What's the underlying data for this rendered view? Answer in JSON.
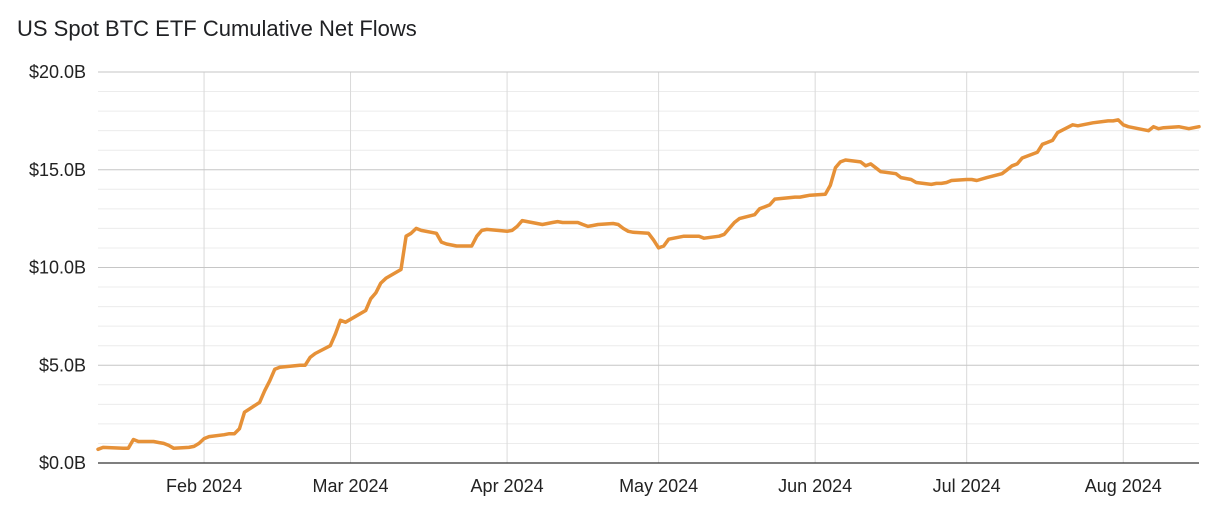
{
  "chart_data": {
    "type": "line",
    "title": "US Spot BTC ETF Cumulative Net Flows",
    "xlabel": "",
    "ylabel": "",
    "x_ticks": [
      "Feb 2024",
      "Mar 2024",
      "Apr 2024",
      "May 2024",
      "Jun 2024",
      "Jul 2024",
      "Aug 2024"
    ],
    "y_ticks": [
      "$0.0B",
      "$5.0B",
      "$10.0B",
      "$15.0B",
      "$20.0B"
    ],
    "ylim": [
      0,
      20
    ],
    "xlim": [
      "2024-01-11",
      "2024-08-16"
    ],
    "grid": true,
    "legend": "none",
    "series": [
      {
        "color": "#E69138",
        "unit": "$B",
        "points": [
          [
            "2024-01-11",
            0.7
          ],
          [
            "2024-01-12",
            0.8
          ],
          [
            "2024-01-16",
            0.75
          ],
          [
            "2024-01-17",
            0.75
          ],
          [
            "2024-01-18",
            1.2
          ],
          [
            "2024-01-19",
            1.1
          ],
          [
            "2024-01-22",
            1.1
          ],
          [
            "2024-01-23",
            1.05
          ],
          [
            "2024-01-24",
            1.0
          ],
          [
            "2024-01-25",
            0.9
          ],
          [
            "2024-01-26",
            0.75
          ],
          [
            "2024-01-29",
            0.8
          ],
          [
            "2024-01-30",
            0.85
          ],
          [
            "2024-01-31",
            1.0
          ],
          [
            "2024-02-01",
            1.25
          ],
          [
            "2024-02-02",
            1.35
          ],
          [
            "2024-02-05",
            1.45
          ],
          [
            "2024-02-06",
            1.5
          ],
          [
            "2024-02-07",
            1.5
          ],
          [
            "2024-02-08",
            1.75
          ],
          [
            "2024-02-09",
            2.6
          ],
          [
            "2024-02-12",
            3.1
          ],
          [
            "2024-02-13",
            3.7
          ],
          [
            "2024-02-14",
            4.2
          ],
          [
            "2024-02-15",
            4.8
          ],
          [
            "2024-02-16",
            4.9
          ],
          [
            "2024-02-20",
            5.0
          ],
          [
            "2024-02-21",
            5.0
          ],
          [
            "2024-02-22",
            5.4
          ],
          [
            "2024-02-23",
            5.6
          ],
          [
            "2024-02-26",
            6.0
          ],
          [
            "2024-02-27",
            6.6
          ],
          [
            "2024-02-28",
            7.3
          ],
          [
            "2024-02-29",
            7.2
          ],
          [
            "2024-03-01",
            7.35
          ],
          [
            "2024-03-04",
            7.8
          ],
          [
            "2024-03-05",
            8.4
          ],
          [
            "2024-03-06",
            8.7
          ],
          [
            "2024-03-07",
            9.2
          ],
          [
            "2024-03-08",
            9.45
          ],
          [
            "2024-03-11",
            9.9
          ],
          [
            "2024-03-12",
            11.6
          ],
          [
            "2024-03-13",
            11.75
          ],
          [
            "2024-03-14",
            12.0
          ],
          [
            "2024-03-15",
            11.9
          ],
          [
            "2024-03-18",
            11.75
          ],
          [
            "2024-03-19",
            11.3
          ],
          [
            "2024-03-20",
            11.2
          ],
          [
            "2024-03-21",
            11.15
          ],
          [
            "2024-03-22",
            11.1
          ],
          [
            "2024-03-25",
            11.1
          ],
          [
            "2024-03-26",
            11.6
          ],
          [
            "2024-03-27",
            11.9
          ],
          [
            "2024-03-28",
            11.95
          ],
          [
            "2024-04-01",
            11.85
          ],
          [
            "2024-04-02",
            11.9
          ],
          [
            "2024-04-03",
            12.1
          ],
          [
            "2024-04-04",
            12.4
          ],
          [
            "2024-04-05",
            12.35
          ],
          [
            "2024-04-08",
            12.2
          ],
          [
            "2024-04-09",
            12.25
          ],
          [
            "2024-04-10",
            12.3
          ],
          [
            "2024-04-11",
            12.35
          ],
          [
            "2024-04-12",
            12.3
          ],
          [
            "2024-04-15",
            12.3
          ],
          [
            "2024-04-16",
            12.2
          ],
          [
            "2024-04-17",
            12.1
          ],
          [
            "2024-04-18",
            12.15
          ],
          [
            "2024-04-19",
            12.2
          ],
          [
            "2024-04-22",
            12.25
          ],
          [
            "2024-04-23",
            12.2
          ],
          [
            "2024-04-24",
            12.0
          ],
          [
            "2024-04-25",
            11.85
          ],
          [
            "2024-04-26",
            11.8
          ],
          [
            "2024-04-29",
            11.75
          ],
          [
            "2024-04-30",
            11.4
          ],
          [
            "2024-05-01",
            11.0
          ],
          [
            "2024-05-02",
            11.1
          ],
          [
            "2024-05-03",
            11.45
          ],
          [
            "2024-05-06",
            11.6
          ],
          [
            "2024-05-07",
            11.6
          ],
          [
            "2024-05-08",
            11.6
          ],
          [
            "2024-05-09",
            11.6
          ],
          [
            "2024-05-10",
            11.5
          ],
          [
            "2024-05-13",
            11.6
          ],
          [
            "2024-05-14",
            11.7
          ],
          [
            "2024-05-15",
            12.0
          ],
          [
            "2024-05-16",
            12.3
          ],
          [
            "2024-05-17",
            12.5
          ],
          [
            "2024-05-20",
            12.7
          ],
          [
            "2024-05-21",
            13.0
          ],
          [
            "2024-05-22",
            13.1
          ],
          [
            "2024-05-23",
            13.2
          ],
          [
            "2024-05-24",
            13.5
          ],
          [
            "2024-05-28",
            13.6
          ],
          [
            "2024-05-29",
            13.6
          ],
          [
            "2024-05-30",
            13.65
          ],
          [
            "2024-05-31",
            13.7
          ],
          [
            "2024-06-03",
            13.75
          ],
          [
            "2024-06-04",
            14.2
          ],
          [
            "2024-06-05",
            15.1
          ],
          [
            "2024-06-06",
            15.4
          ],
          [
            "2024-06-07",
            15.5
          ],
          [
            "2024-06-10",
            15.4
          ],
          [
            "2024-06-11",
            15.2
          ],
          [
            "2024-06-12",
            15.3
          ],
          [
            "2024-06-13",
            15.1
          ],
          [
            "2024-06-14",
            14.9
          ],
          [
            "2024-06-17",
            14.8
          ],
          [
            "2024-06-18",
            14.6
          ],
          [
            "2024-06-20",
            14.5
          ],
          [
            "2024-06-21",
            14.35
          ],
          [
            "2024-06-24",
            14.25
          ],
          [
            "2024-06-25",
            14.3
          ],
          [
            "2024-06-26",
            14.3
          ],
          [
            "2024-06-27",
            14.35
          ],
          [
            "2024-06-28",
            14.45
          ],
          [
            "2024-07-01",
            14.5
          ],
          [
            "2024-07-02",
            14.5
          ],
          [
            "2024-07-03",
            14.45
          ],
          [
            "2024-07-05",
            14.6
          ],
          [
            "2024-07-08",
            14.8
          ],
          [
            "2024-07-09",
            15.0
          ],
          [
            "2024-07-10",
            15.2
          ],
          [
            "2024-07-11",
            15.3
          ],
          [
            "2024-07-12",
            15.6
          ],
          [
            "2024-07-15",
            15.9
          ],
          [
            "2024-07-16",
            16.3
          ],
          [
            "2024-07-17",
            16.4
          ],
          [
            "2024-07-18",
            16.5
          ],
          [
            "2024-07-19",
            16.9
          ],
          [
            "2024-07-22",
            17.3
          ],
          [
            "2024-07-23",
            17.25
          ],
          [
            "2024-07-24",
            17.3
          ],
          [
            "2024-07-25",
            17.35
          ],
          [
            "2024-07-26",
            17.4
          ],
          [
            "2024-07-29",
            17.5
          ],
          [
            "2024-07-30",
            17.5
          ],
          [
            "2024-07-31",
            17.55
          ],
          [
            "2024-08-01",
            17.3
          ],
          [
            "2024-08-02",
            17.2
          ],
          [
            "2024-08-05",
            17.05
          ],
          [
            "2024-08-06",
            17.0
          ],
          [
            "2024-08-07",
            17.2
          ],
          [
            "2024-08-08",
            17.1
          ],
          [
            "2024-08-09",
            17.15
          ],
          [
            "2024-08-12",
            17.2
          ],
          [
            "2024-08-13",
            17.15
          ],
          [
            "2024-08-14",
            17.1
          ],
          [
            "2024-08-15",
            17.15
          ],
          [
            "2024-08-16",
            17.2
          ]
        ]
      }
    ]
  }
}
